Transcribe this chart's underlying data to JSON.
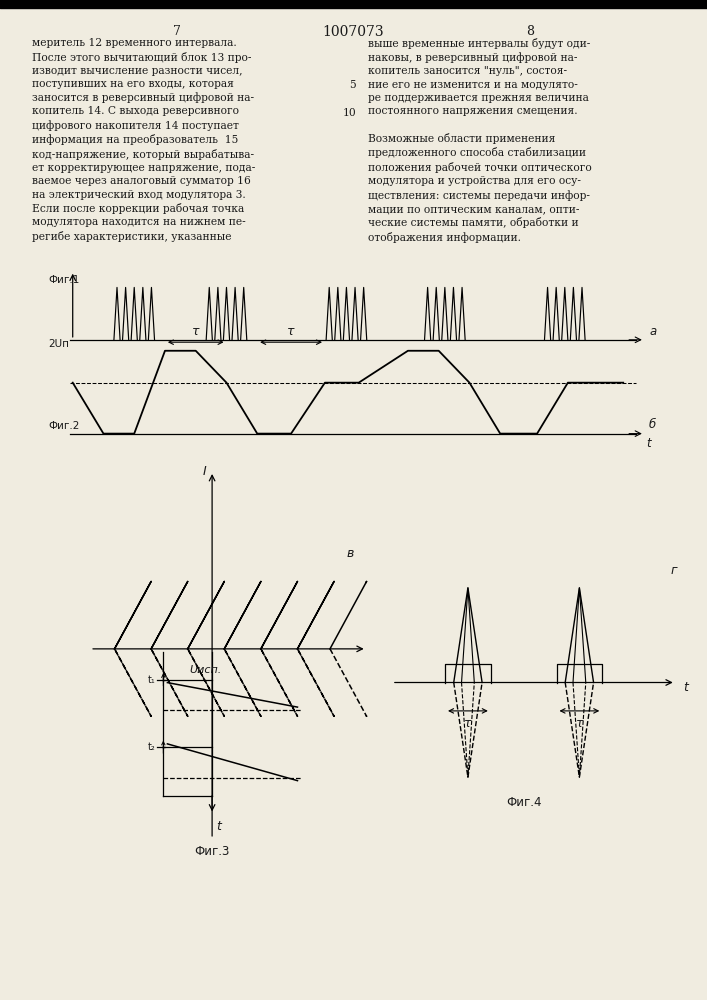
{
  "page_num_left": "7",
  "page_num_center": "1007073",
  "page_num_right": "8",
  "text_left": "меритель 12 временного интервала.\nПосле этого вычитающий блок 13 про-\nизводит вычисление разности чисел,\nпоступивших на его входы, которая\nзаносится в реверсивный цифровой на-\nкопитель 14. С выхода реверсивного\nцифрового накопителя 14 поступает\nинформация на преобразователь  15\nкод-напряжение, который вырабатыва-\nет корректирующее напряжение, пода-\nваемое через аналоговый сумматор 16\nна электрический вход модулятора 3.\nЕсли после коррекции рабочая точка\nмодулятора находится на нижнем пе-\nрегибе характеристики, указанные",
  "text_right": "выше временные интервалы будут оди-\nнаковы, в реверсивный цифровой на-\nкопитель заносится \"нуль\", состоя-\nние его не изменится и на модулято-\nре поддерживается прежняя величина\nпостоянного напряжения смещения.\n\nВозможные области применения\nпредложенного способа стабилизации\nположения рабочей точки оптического\nмодулятора и устройства для его осу-\nществления: системы передачи инфор-\nмации по оптическим каналам, опти-\nческие системы памяти, обработки и\nотображения информации.",
  "bg_color": "#f0ece0",
  "text_color": "#1a1a1a",
  "fig1_label": "Фиг.1",
  "fig2_label": "Фиг.2",
  "fig3_label": "Фиг.3",
  "fig4_label": "Фиг.4",
  "label_a": "а",
  "label_b": "б",
  "label_v": "в",
  "label_2un": "2Uп",
  "label_uisp": "Uисп.",
  "label_tau": "τ",
  "label_I": "I",
  "label_t": "t",
  "label_g": "г"
}
